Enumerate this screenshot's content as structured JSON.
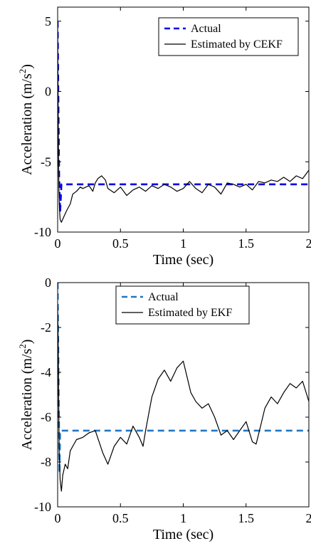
{
  "chart_data": [
    {
      "type": "line",
      "xlabel": "Time (sec)",
      "ylabel": "Acceleration (m/s",
      "ylabel_sup": "2",
      "ylabel_end": ")",
      "xlim": [
        0,
        2
      ],
      "ylim": [
        -10,
        6
      ],
      "xticks": [
        0,
        0.5,
        1,
        1.5,
        2
      ],
      "xtick_labels": [
        "0",
        "0.5",
        "1",
        "1.5",
        "2"
      ],
      "yticks": [
        -10,
        -5,
        0,
        5
      ],
      "ytick_labels": [
        "-10",
        "-5",
        "0",
        "5"
      ],
      "grid": false,
      "legend_position": "top-right",
      "series": [
        {
          "name": "Actual",
          "style": "dashed",
          "color": "#0000e6",
          "x": [
            0,
            0.005,
            0.012,
            0.02,
            0.03,
            2
          ],
          "y": [
            5,
            0,
            -6,
            -8.6,
            -6.6,
            -6.6
          ]
        },
        {
          "name": "Estimated by CEKF",
          "style": "solid",
          "color": "#000000",
          "x": [
            0,
            0.003,
            0.006,
            0.01,
            0.015,
            0.02,
            0.03,
            0.05,
            0.07,
            0.1,
            0.12,
            0.15,
            0.18,
            0.2,
            0.25,
            0.28,
            0.3,
            0.32,
            0.35,
            0.38,
            0.4,
            0.45,
            0.5,
            0.55,
            0.6,
            0.65,
            0.7,
            0.75,
            0.8,
            0.85,
            0.9,
            0.95,
            1.0,
            1.05,
            1.1,
            1.15,
            1.2,
            1.25,
            1.3,
            1.35,
            1.4,
            1.45,
            1.5,
            1.55,
            1.6,
            1.65,
            1.7,
            1.75,
            1.8,
            1.85,
            1.9,
            1.95,
            2.0
          ],
          "y": [
            5,
            0.5,
            -4,
            -7,
            -8.4,
            -9.1,
            -9.3,
            -8.9,
            -8.5,
            -8.0,
            -7.3,
            -7.1,
            -6.8,
            -6.9,
            -6.7,
            -7.1,
            -6.5,
            -6.2,
            -6.0,
            -6.3,
            -6.9,
            -7.2,
            -6.8,
            -7.4,
            -7.0,
            -6.8,
            -7.1,
            -6.7,
            -6.9,
            -6.6,
            -6.8,
            -7.1,
            -6.9,
            -6.4,
            -6.9,
            -7.2,
            -6.6,
            -6.8,
            -7.3,
            -6.5,
            -6.6,
            -6.8,
            -6.6,
            -7.0,
            -6.4,
            -6.5,
            -6.3,
            -6.4,
            -6.1,
            -6.4,
            -6.0,
            -6.2,
            -5.6
          ]
        }
      ]
    },
    {
      "type": "line",
      "xlabel": "Time (sec)",
      "ylabel": "Acceleration (m/s",
      "ylabel_sup": "2",
      "ylabel_end": ")",
      "xlim": [
        0,
        2
      ],
      "ylim": [
        -10,
        0
      ],
      "xticks": [
        0,
        0.5,
        1,
        1.5,
        2
      ],
      "xtick_labels": [
        "0",
        "0.5",
        "1",
        "1.5",
        "2"
      ],
      "yticks": [
        -10,
        -8,
        -6,
        -4,
        -2,
        0
      ],
      "ytick_labels": [
        "-10",
        "-8",
        "-6",
        "-4",
        "-2",
        "0"
      ],
      "grid": false,
      "legend_position": "top-center",
      "series": [
        {
          "name": "Actual",
          "style": "dashed",
          "color": "#1f77c4",
          "x": [
            0,
            0.005,
            0.01,
            0.015,
            0.02,
            2
          ],
          "y": [
            0,
            -3,
            -6,
            -8.5,
            -6.6,
            -6.6
          ]
        },
        {
          "name": "Estimated by EKF",
          "style": "solid",
          "color": "#000000",
          "x": [
            0,
            0.004,
            0.008,
            0.012,
            0.02,
            0.03,
            0.04,
            0.06,
            0.08,
            0.1,
            0.15,
            0.2,
            0.25,
            0.3,
            0.33,
            0.36,
            0.4,
            0.45,
            0.5,
            0.55,
            0.6,
            0.65,
            0.68,
            0.7,
            0.75,
            0.8,
            0.85,
            0.9,
            0.95,
            1.0,
            1.03,
            1.06,
            1.1,
            1.15,
            1.2,
            1.25,
            1.3,
            1.35,
            1.4,
            1.45,
            1.5,
            1.55,
            1.58,
            1.62,
            1.65,
            1.7,
            1.75,
            1.8,
            1.85,
            1.9,
            1.95,
            2.0
          ],
          "y": [
            -1.0,
            -2.5,
            -5,
            -7.5,
            -8.8,
            -9.3,
            -8.6,
            -8.1,
            -8.3,
            -7.5,
            -7.0,
            -6.9,
            -6.7,
            -6.6,
            -7.1,
            -7.6,
            -8.1,
            -7.3,
            -6.9,
            -7.2,
            -6.4,
            -6.9,
            -7.3,
            -6.6,
            -5.1,
            -4.3,
            -3.9,
            -4.4,
            -3.8,
            -3.5,
            -4.2,
            -4.9,
            -5.3,
            -5.6,
            -5.4,
            -6.0,
            -6.8,
            -6.6,
            -7.0,
            -6.6,
            -6.2,
            -7.1,
            -7.2,
            -6.3,
            -5.6,
            -5.1,
            -5.4,
            -4.9,
            -4.5,
            -4.7,
            -4.4,
            -5.3
          ]
        }
      ]
    }
  ]
}
